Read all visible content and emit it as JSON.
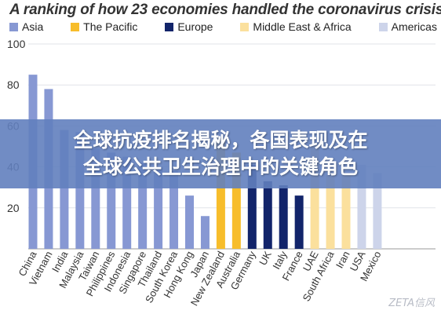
{
  "chart_data": {
    "type": "bar",
    "title": "A ranking of how 23 economies handled the coronavirus crisis",
    "xlabel": "",
    "ylabel": "",
    "ylim": [
      0,
      100
    ],
    "yticks": [
      20,
      40,
      60,
      80,
      100
    ],
    "grid": true,
    "legend_position": "top",
    "legend": [
      {
        "name": "Asia",
        "color": "#8798d3"
      },
      {
        "name": "The Pacific",
        "color": "#f7bd2b"
      },
      {
        "name": "Europe",
        "color": "#12246a"
      },
      {
        "name": "Middle East & Africa",
        "color": "#fbe09d"
      },
      {
        "name": "Americas",
        "color": "#cdd4ea"
      }
    ],
    "categories": [
      "China",
      "Vietnam",
      "India",
      "Malaysia",
      "Taiwan",
      "Philippines",
      "Indonesia",
      "Singapore",
      "Thailand",
      "South Korea",
      "Hong Kong",
      "Japan",
      "New Zealand",
      "Australia",
      "Germany",
      "UK",
      "Italy",
      "France",
      "UAE",
      "South Africa",
      "Iran",
      "USA",
      "Mexico"
    ],
    "values": [
      85,
      78,
      58,
      57,
      49,
      47,
      45,
      42,
      40,
      38,
      26,
      16,
      54,
      47,
      41,
      33,
      31,
      26,
      52,
      36,
      36,
      41,
      37
    ],
    "groups": [
      "Asia",
      "Asia",
      "Asia",
      "Asia",
      "Asia",
      "Asia",
      "Asia",
      "Asia",
      "Asia",
      "Asia",
      "Asia",
      "Asia",
      "The Pacific",
      "The Pacific",
      "Europe",
      "Europe",
      "Europe",
      "Europe",
      "Middle East & Africa",
      "Middle East & Africa",
      "Middle East & Africa",
      "Americas",
      "Americas"
    ]
  },
  "banner": {
    "line1": "全球抗疫排名揭秘，各国表现及在",
    "line2": "全球公共卫生治理中的关键角色"
  },
  "watermark": "ZETA信风"
}
